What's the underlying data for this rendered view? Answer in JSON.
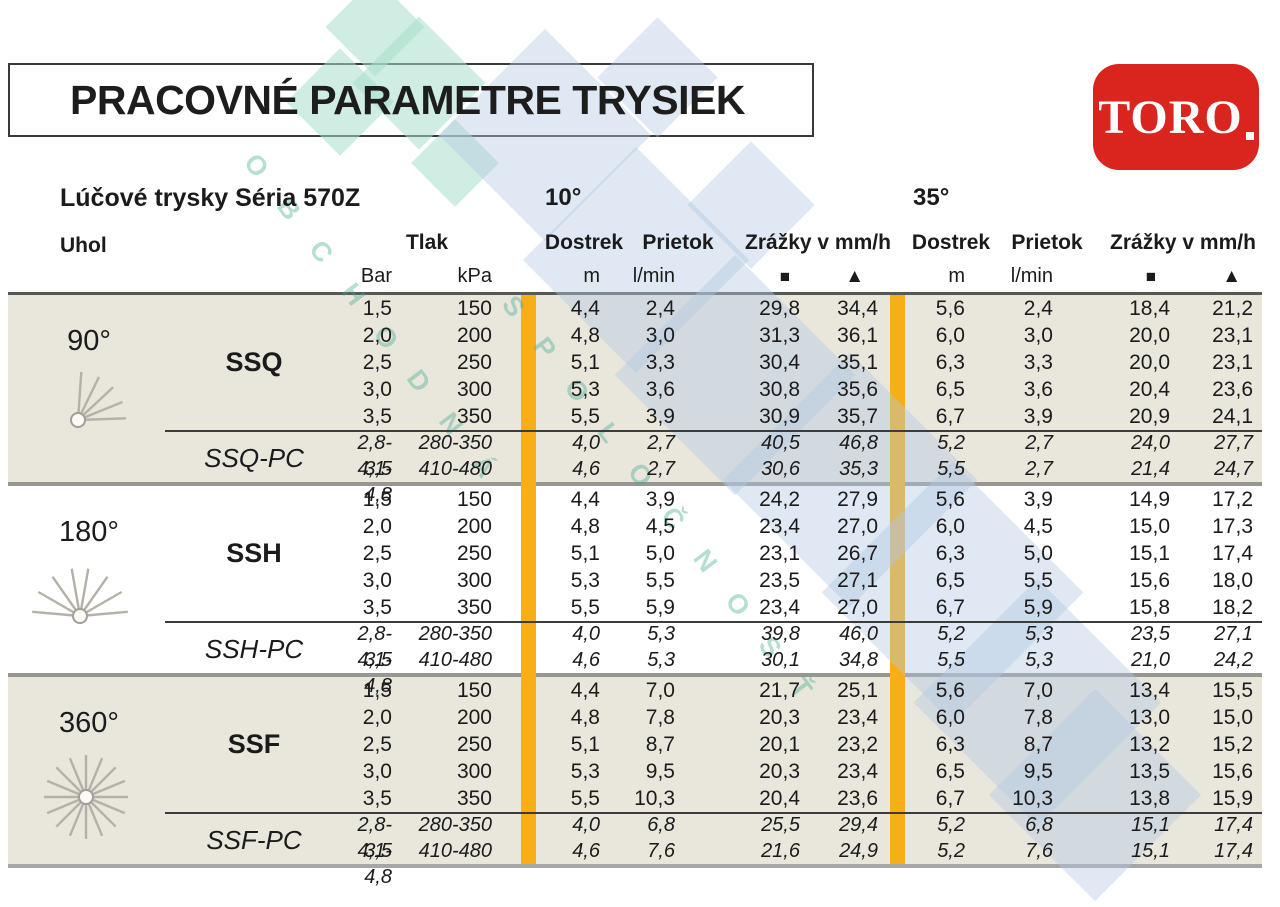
{
  "title": "PRACOVNÉ PARAMETRE TRYSIEK",
  "brand": {
    "name": "TORO"
  },
  "table_header": {
    "series": "Lúčové trysky Séria 570Z",
    "trajectory_left": "10°",
    "trajectory_right": "35°",
    "angle_col": "Uhol",
    "pressure": "Tlak",
    "distance": "Dostrek",
    "flow": "Prietok",
    "precip": "Zrážky v mm/h",
    "units": {
      "bar": "Bar",
      "kpa": "kPa",
      "m": "m",
      "lmin": "l/min",
      "square": "■",
      "triangle": "▲"
    }
  },
  "columns": [
    "bar",
    "kpa",
    "dostrek-10",
    "prietok-10",
    "zrazky-10-square",
    "zrazky-10-triangle",
    "dostrek-35",
    "prietok-35",
    "zrazky-35-square",
    "zrazky-35-triangle"
  ],
  "groups": [
    {
      "angle": "90°",
      "icon": "spray-quarter-icon",
      "shaded": true,
      "model": "SSQ",
      "pc_model": "SSQ-PC",
      "rows": [
        [
          "1,5",
          "150",
          "4,4",
          "2,4",
          "29,8",
          "34,4",
          "5,6",
          "2,4",
          "18,4",
          "21,2"
        ],
        [
          "2,0",
          "200",
          "4,8",
          "3,0",
          "31,3",
          "36,1",
          "6,0",
          "3,0",
          "20,0",
          "23,1"
        ],
        [
          "2,5",
          "250",
          "5,1",
          "3,3",
          "30,4",
          "35,1",
          "6,3",
          "3,3",
          "20,0",
          "23,1"
        ],
        [
          "3,0",
          "300",
          "5,3",
          "3,6",
          "30,8",
          "35,6",
          "6,5",
          "3,6",
          "20,4",
          "23,6"
        ],
        [
          "3,5",
          "350",
          "5,5",
          "3,9",
          "30,9",
          "35,7",
          "6,7",
          "3,9",
          "20,9",
          "24,1"
        ]
      ],
      "pc_rows": [
        [
          "2,8-3,5",
          "280-350",
          "4,0",
          "2,7",
          "40,5",
          "46,8",
          "5,2",
          "2,7",
          "24,0",
          "27,7"
        ],
        [
          "4,1-4,8",
          "410-480",
          "4,6",
          "2,7",
          "30,6",
          "35,3",
          "5,5",
          "2,7",
          "21,4",
          "24,7"
        ]
      ]
    },
    {
      "angle": "180°",
      "icon": "spray-half-icon",
      "shaded": false,
      "model": "SSH",
      "pc_model": "SSH-PC",
      "rows": [
        [
          "1,5",
          "150",
          "4,4",
          "3,9",
          "24,2",
          "27,9",
          "5,6",
          "3,9",
          "14,9",
          "17,2"
        ],
        [
          "2,0",
          "200",
          "4,8",
          "4,5",
          "23,4",
          "27,0",
          "6,0",
          "4,5",
          "15,0",
          "17,3"
        ],
        [
          "2,5",
          "250",
          "5,1",
          "5,0",
          "23,1",
          "26,7",
          "6,3",
          "5,0",
          "15,1",
          "17,4"
        ],
        [
          "3,0",
          "300",
          "5,3",
          "5,5",
          "23,5",
          "27,1",
          "6,5",
          "5,5",
          "15,6",
          "18,0"
        ],
        [
          "3,5",
          "350",
          "5,5",
          "5,9",
          "23,4",
          "27,0",
          "6,7",
          "5,9",
          "15,8",
          "18,2"
        ]
      ],
      "pc_rows": [
        [
          "2,8-3,5",
          "280-350",
          "4,0",
          "5,3",
          "39,8",
          "46,0",
          "5,2",
          "5,3",
          "23,5",
          "27,1"
        ],
        [
          "4,1-4,8",
          "410-480",
          "4,6",
          "5,3",
          "30,1",
          "34,8",
          "5,5",
          "5,3",
          "21,0",
          "24,2"
        ]
      ]
    },
    {
      "angle": "360°",
      "icon": "spray-full-icon",
      "shaded": true,
      "model": "SSF",
      "pc_model": "SSF-PC",
      "rows": [
        [
          "1,5",
          "150",
          "4,4",
          "7,0",
          "21,7",
          "25,1",
          "5,6",
          "7,0",
          "13,4",
          "15,5"
        ],
        [
          "2,0",
          "200",
          "4,8",
          "7,8",
          "20,3",
          "23,4",
          "6,0",
          "7,8",
          "13,0",
          "15,0"
        ],
        [
          "2,5",
          "250",
          "5,1",
          "8,7",
          "20,1",
          "23,2",
          "6,3",
          "8,7",
          "13,2",
          "15,2"
        ],
        [
          "3,0",
          "300",
          "5,3",
          "9,5",
          "20,3",
          "23,4",
          "6,5",
          "9,5",
          "13,5",
          "15,6"
        ],
        [
          "3,5",
          "350",
          "5,5",
          "10,3",
          "20,4",
          "23,6",
          "6,7",
          "10,3",
          "13,8",
          "15,9"
        ]
      ],
      "pc_rows": [
        [
          "2,8-3,5",
          "280-350",
          "4,0",
          "6,8",
          "25,5",
          "29,4",
          "5,2",
          "6,8",
          "15,1",
          "17,4"
        ],
        [
          "4,1-4,8",
          "410-480",
          "4,6",
          "7,6",
          "21,6",
          "24,9",
          "5,2",
          "7,6",
          "15,1",
          "17,4"
        ]
      ]
    }
  ],
  "watermark": {
    "line1": "OBCHODNÁ",
    "line2": "SPOLOČNOSŤ",
    "diamond_blue": "#b3c9e2",
    "diamond_teal": "#a7dfca"
  },
  "colors": {
    "brand_red": "#d9251d",
    "stripe": "#f7ae19",
    "shaded_bg": "#e9e6dc",
    "text": "#1b1b1b"
  }
}
